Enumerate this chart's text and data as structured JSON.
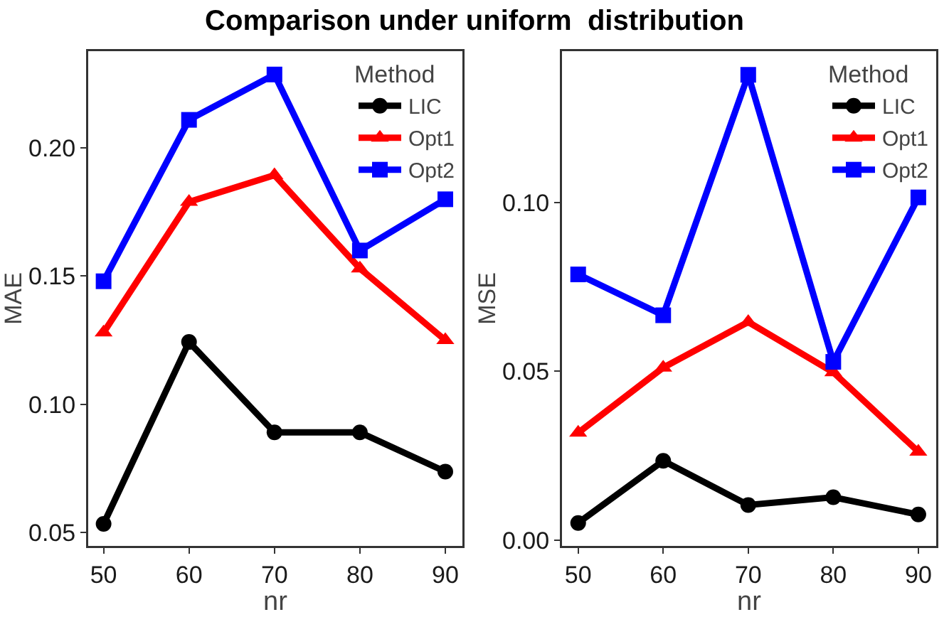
{
  "chart_data": [
    {
      "type": "line",
      "title": "Comparison under uniform  distribution",
      "xlabel": "nr",
      "ylabel": "MAE",
      "legend_title": "Method",
      "legend": "top right",
      "grid": false,
      "x": [
        50,
        60,
        70,
        80,
        90
      ],
      "xlim": [
        48.2,
        92
      ],
      "xticks": [
        50,
        60,
        70,
        80,
        90
      ],
      "ylim": [
        0.0447,
        0.2378
      ],
      "yticks": [
        {
          "value": 0.05,
          "label": "0.05"
        },
        {
          "value": 0.1,
          "label": "0.10"
        },
        {
          "value": 0.15,
          "label": "0.15"
        },
        {
          "value": 0.2,
          "label": "0.20"
        }
      ],
      "series": [
        {
          "name": "LIC",
          "color": "#000000",
          "marker": "circle",
          "values": [
            0.0533,
            0.1243,
            0.089,
            0.089,
            0.0737
          ]
        },
        {
          "name": "Opt1",
          "color": "#ff0000",
          "marker": "triangle",
          "values": [
            0.128,
            0.179,
            0.1894,
            0.153,
            0.125
          ]
        },
        {
          "name": "Opt2",
          "color": "#0000ff",
          "marker": "square",
          "values": [
            0.148,
            0.211,
            0.2287,
            0.16,
            0.18
          ]
        }
      ]
    },
    {
      "type": "line",
      "xlabel": "nr",
      "ylabel": "MSE",
      "legend_title": "Method",
      "legend": "top right",
      "grid": false,
      "x": [
        50,
        60,
        70,
        80,
        90
      ],
      "xlim": [
        48.1,
        92.1
      ],
      "xticks": [
        50,
        60,
        70,
        80,
        90
      ],
      "ylim": [
        -0.0017,
        0.1448
      ],
      "yticks": [
        {
          "value": 0,
          "label": "0.00"
        },
        {
          "value": 0.05,
          "label": "0.05"
        },
        {
          "value": 0.1,
          "label": "0.10"
        }
      ],
      "series": [
        {
          "name": "LIC",
          "color": "#000000",
          "marker": "circle",
          "values": [
            0.0051,
            0.0235,
            0.0104,
            0.0127,
            0.0076
          ]
        },
        {
          "name": "Opt1",
          "color": "#ff0000",
          "marker": "triangle",
          "values": [
            0.0318,
            0.0511,
            0.0646,
            0.0497,
            0.0262
          ]
        },
        {
          "name": "Opt2",
          "color": "#0000ff",
          "marker": "square",
          "values": [
            0.0787,
            0.0666,
            0.1378,
            0.0528,
            0.1015
          ]
        }
      ]
    }
  ]
}
